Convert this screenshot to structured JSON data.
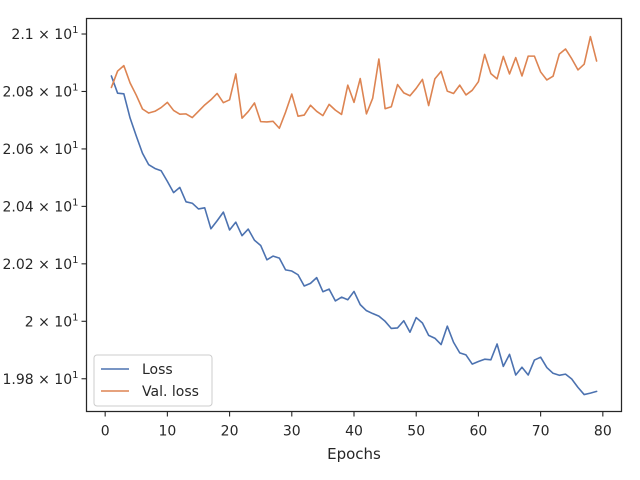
{
  "chart_data": {
    "type": "line",
    "title": "",
    "xlabel": "Epochs",
    "ylabel": "",
    "xlim": [
      -3,
      83
    ],
    "ylim": [
      19.686,
      21.054
    ],
    "x_ticks": [
      0,
      10,
      20,
      30,
      40,
      50,
      60,
      70,
      80
    ],
    "y_ticks": [
      {
        "value": 19.8,
        "label": "1.98 × 10",
        "exp": "1"
      },
      {
        "value": 20.0,
        "label": "2 × 10",
        "exp": "1"
      },
      {
        "value": 20.2,
        "label": "2.02 × 10",
        "exp": "1"
      },
      {
        "value": 20.4,
        "label": "2.04 × 10",
        "exp": "1"
      },
      {
        "value": 20.6,
        "label": "2.06 × 10",
        "exp": "1"
      },
      {
        "value": 20.8,
        "label": "2.08 × 10",
        "exp": "1"
      },
      {
        "value": 21.0,
        "label": "2.1 × 10",
        "exp": "1"
      }
    ],
    "legend": {
      "position": "lower-left"
    },
    "series": [
      {
        "name": "Loss",
        "color": "#4c72b0",
        "x": [
          1,
          2,
          3,
          4,
          5,
          6,
          7,
          8,
          9,
          10,
          11,
          12,
          13,
          14,
          15,
          16,
          17,
          18,
          19,
          20,
          21,
          22,
          23,
          24,
          25,
          26,
          27,
          28,
          29,
          30,
          31,
          32,
          33,
          34,
          35,
          36,
          37,
          38,
          39,
          40,
          41,
          42,
          43,
          44,
          45,
          46,
          47,
          48,
          49,
          50,
          51,
          52,
          53,
          54,
          55,
          56,
          57,
          58,
          59,
          60,
          61,
          62,
          63,
          64,
          65,
          66,
          67,
          68,
          69,
          70,
          71,
          72,
          73,
          74,
          75,
          76,
          77,
          78,
          79
        ],
        "values": [
          20.854,
          20.794,
          20.792,
          20.708,
          20.645,
          20.585,
          20.545,
          20.532,
          20.524,
          20.487,
          20.448,
          20.466,
          20.416,
          20.411,
          20.391,
          20.395,
          20.322,
          20.35,
          20.38,
          20.318,
          20.345,
          20.298,
          20.321,
          20.282,
          20.264,
          20.214,
          20.227,
          20.22,
          20.179,
          20.175,
          20.162,
          20.123,
          20.132,
          20.152,
          20.103,
          20.112,
          20.071,
          20.084,
          20.075,
          20.104,
          20.058,
          20.037,
          20.027,
          20.018,
          20.0,
          19.975,
          19.977,
          20.002,
          19.962,
          20.013,
          19.994,
          19.951,
          19.941,
          19.919,
          19.983,
          19.927,
          19.89,
          19.883,
          19.851,
          19.86,
          19.868,
          19.866,
          19.921,
          19.843,
          19.885,
          19.813,
          19.84,
          19.813,
          19.865,
          19.875,
          19.839,
          19.819,
          19.812,
          19.816,
          19.799,
          19.77,
          19.745,
          19.75,
          19.756
        ]
      },
      {
        "name": "Val. loss",
        "color": "#dd8452",
        "x": [
          1,
          2,
          3,
          4,
          5,
          6,
          7,
          8,
          9,
          10,
          11,
          12,
          13,
          14,
          15,
          16,
          17,
          18,
          19,
          20,
          21,
          22,
          23,
          24,
          25,
          26,
          27,
          28,
          29,
          30,
          31,
          32,
          33,
          34,
          35,
          36,
          37,
          38,
          39,
          40,
          41,
          42,
          43,
          44,
          45,
          46,
          47,
          48,
          49,
          50,
          51,
          52,
          53,
          54,
          55,
          56,
          57,
          58,
          59,
          60,
          61,
          62,
          63,
          64,
          65,
          66,
          67,
          68,
          69,
          70,
          71,
          72,
          73,
          74,
          75,
          76,
          77,
          78,
          79
        ],
        "values": [
          20.814,
          20.871,
          20.89,
          20.83,
          20.787,
          20.739,
          20.725,
          20.731,
          20.744,
          20.762,
          20.734,
          20.721,
          20.722,
          20.709,
          20.731,
          20.753,
          20.771,
          20.793,
          20.761,
          20.771,
          20.861,
          20.707,
          20.73,
          20.76,
          20.695,
          20.694,
          20.696,
          20.672,
          20.728,
          20.791,
          20.714,
          20.718,
          20.752,
          20.731,
          20.716,
          20.755,
          20.735,
          20.72,
          20.822,
          20.762,
          20.845,
          20.722,
          20.776,
          20.913,
          20.74,
          20.747,
          20.824,
          20.795,
          20.785,
          20.811,
          20.842,
          20.751,
          20.844,
          20.87,
          20.801,
          20.793,
          20.822,
          20.788,
          20.804,
          20.834,
          20.929,
          20.862,
          20.844,
          20.922,
          20.861,
          20.918,
          20.854,
          20.923,
          20.923,
          20.868,
          20.84,
          20.853,
          20.93,
          20.948,
          20.914,
          20.875,
          20.895,
          20.991,
          20.906
        ]
      }
    ]
  }
}
